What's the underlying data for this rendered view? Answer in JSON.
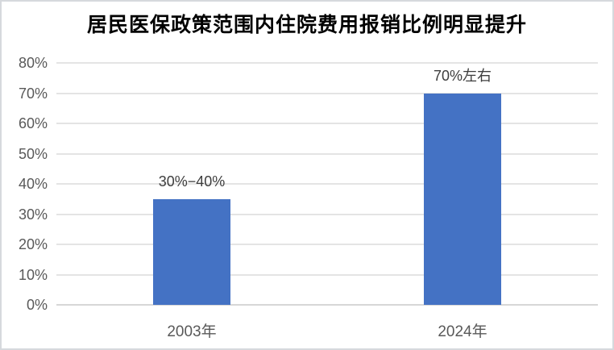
{
  "chart_data": {
    "type": "bar",
    "title": "居民医保政策范围内住院费用报销比例明显提升",
    "categories": [
      "2003年",
      "2024年"
    ],
    "values": [
      35,
      70
    ],
    "data_labels": [
      "30%−40%",
      "70%左右"
    ],
    "tick_values": [
      0,
      10,
      20,
      30,
      40,
      50,
      60,
      70,
      80
    ],
    "tick_labels": [
      "0%",
      "10%",
      "20%",
      "30%",
      "40%",
      "50%",
      "60%",
      "70%",
      "80%"
    ],
    "ylim": [
      0,
      80
    ],
    "xlabel": "",
    "ylabel": "",
    "grid": "horizontal",
    "legend": "none",
    "colors": {
      "bar": "#4472C4",
      "gridline": "#e4e4e4",
      "baseline": "#d7d7d7",
      "axis_text": "#595959",
      "data_label_text": "#3d3d3d",
      "title_text": "#000000",
      "border": "#d6d9dd",
      "background": "#ffffff"
    }
  }
}
